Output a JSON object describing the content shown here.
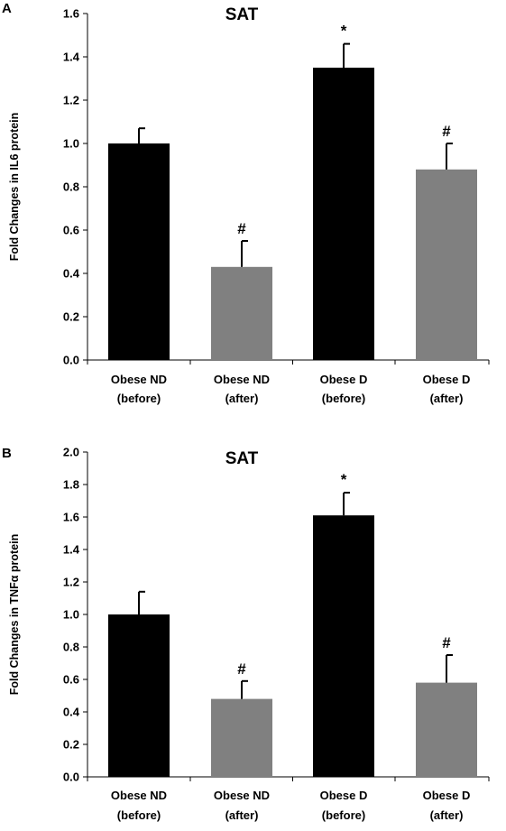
{
  "chart_data": [
    {
      "type": "bar",
      "panel_label": "A",
      "title": "SAT",
      "ylabel": "Fold Changes in IL6 protein",
      "ylim": [
        0,
        1.6
      ],
      "yticks": [
        "0.0",
        "0.2",
        "0.4",
        "0.6",
        "0.8",
        "1.0",
        "1.2",
        "1.4",
        "1.6"
      ],
      "categories": [
        [
          "Obese ND",
          "(before)"
        ],
        [
          "Obese  ND",
          "(after)"
        ],
        [
          "Obese D",
          "(before)"
        ],
        [
          "Obese D",
          "(after)"
        ]
      ],
      "values": [
        1.0,
        0.43,
        1.35,
        0.88
      ],
      "errors": [
        0.07,
        0.12,
        0.11,
        0.12
      ],
      "bar_colors": [
        "#000000",
        "#808080",
        "#000000",
        "#808080"
      ],
      "annotations": [
        "",
        "#",
        "*",
        "#"
      ],
      "grid": false,
      "legend": "none"
    },
    {
      "type": "bar",
      "panel_label": "B",
      "title": "SAT",
      "ylabel": "Fold Changes in TNFα protein",
      "ylim": [
        0,
        2.0
      ],
      "yticks": [
        "0.0",
        "0.2",
        "0.4",
        "0.6",
        "0.8",
        "1.0",
        "1.2",
        "1.4",
        "1.6",
        "1.8",
        "2.0"
      ],
      "categories": [
        [
          "Obese ND",
          "(before)"
        ],
        [
          "Obese  ND",
          "(after)"
        ],
        [
          "Obese D",
          "(before)"
        ],
        [
          "Obese D",
          "(after)"
        ]
      ],
      "values": [
        1.0,
        0.48,
        1.61,
        0.58
      ],
      "errors": [
        0.14,
        0.11,
        0.14,
        0.17
      ],
      "bar_colors": [
        "#000000",
        "#808080",
        "#000000",
        "#808080"
      ],
      "annotations": [
        "",
        "#",
        "*",
        "#"
      ],
      "grid": false,
      "legend": "none"
    }
  ]
}
